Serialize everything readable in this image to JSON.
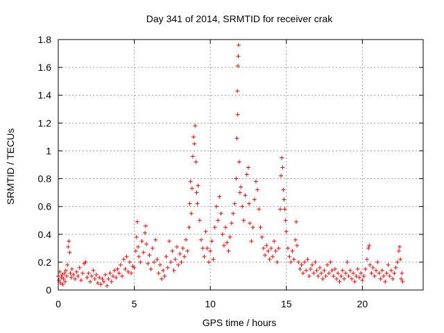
{
  "chart_data": {
    "type": "scatter",
    "title": "Day 341 of 2014, SRMTID for receiver crak",
    "xlabel": "GPS time / hours",
    "ylabel": "SRMTID / TECUs",
    "xlim": [
      0,
      24
    ],
    "ylim": [
      0,
      1.8
    ],
    "xticks": [
      0,
      5,
      10,
      15,
      20
    ],
    "xtick_labels": [
      "0",
      "5",
      "10",
      "15",
      "20"
    ],
    "yticks": [
      0,
      0.2,
      0.4,
      0.6,
      0.8,
      1,
      1.2,
      1.4,
      1.6,
      1.8
    ],
    "ytick_labels": [
      "0",
      "0.2",
      "0.4",
      "0.6",
      "0.8",
      "1",
      "1.2",
      "1.4",
      "1.6",
      "1.8"
    ],
    "grid": true,
    "marker": "+",
    "colors": {
      "series": "#ff0000",
      "grid": "#a0a0a0",
      "axes": "#000000"
    },
    "series": [
      {
        "name": "SRMTID",
        "points": [
          [
            0.0,
            0.1
          ],
          [
            0.05,
            0.07
          ],
          [
            0.1,
            0.13
          ],
          [
            0.15,
            0.05
          ],
          [
            0.2,
            0.09
          ],
          [
            0.25,
            0.11
          ],
          [
            0.3,
            0.04
          ],
          [
            0.35,
            0.08
          ],
          [
            0.4,
            0.12
          ],
          [
            0.45,
            0.06
          ],
          [
            0.5,
            0.14
          ],
          [
            0.55,
            0.1
          ],
          [
            0.6,
            0.18
          ],
          [
            0.65,
            0.31
          ],
          [
            0.7,
            0.35
          ],
          [
            0.75,
            0.27
          ],
          [
            0.8,
            0.12
          ],
          [
            0.85,
            0.09
          ],
          [
            0.9,
            0.15
          ],
          [
            1.0,
            0.11
          ],
          [
            1.1,
            0.08
          ],
          [
            1.2,
            0.13
          ],
          [
            1.3,
            0.1
          ],
          [
            1.4,
            0.16
          ],
          [
            1.5,
            0.07
          ],
          [
            1.6,
            0.12
          ],
          [
            1.7,
            0.19
          ],
          [
            1.8,
            0.2
          ],
          [
            1.9,
            0.09
          ],
          [
            2.0,
            0.12
          ],
          [
            2.1,
            0.06
          ],
          [
            2.2,
            0.1
          ],
          [
            2.3,
            0.14
          ],
          [
            2.4,
            0.08
          ],
          [
            2.5,
            0.11
          ],
          [
            2.6,
            0.05
          ],
          [
            2.7,
            0.09
          ],
          [
            2.8,
            0.04
          ],
          [
            2.9,
            0.08
          ],
          [
            3.0,
            0.06
          ],
          [
            3.1,
            0.11
          ],
          [
            3.2,
            0.03
          ],
          [
            3.3,
            0.08
          ],
          [
            3.4,
            0.12
          ],
          [
            3.5,
            0.06
          ],
          [
            3.6,
            0.1
          ],
          [
            3.7,
            0.14
          ],
          [
            3.8,
            0.09
          ],
          [
            3.9,
            0.15
          ],
          [
            4.0,
            0.12
          ],
          [
            4.1,
            0.18
          ],
          [
            4.2,
            0.1
          ],
          [
            4.3,
            0.22
          ],
          [
            4.4,
            0.15
          ],
          [
            4.5,
            0.24
          ],
          [
            4.6,
            0.13
          ],
          [
            4.7,
            0.2
          ],
          [
            4.8,
            0.12
          ],
          [
            4.9,
            0.17
          ],
          [
            5.0,
            0.16
          ],
          [
            5.1,
            0.28
          ],
          [
            5.15,
            0.38
          ],
          [
            5.2,
            0.49
          ],
          [
            5.25,
            0.31
          ],
          [
            5.3,
            0.24
          ],
          [
            5.4,
            0.2
          ],
          [
            5.5,
            0.35
          ],
          [
            5.6,
            0.27
          ],
          [
            5.7,
            0.41
          ],
          [
            5.75,
            0.46
          ],
          [
            5.8,
            0.33
          ],
          [
            5.9,
            0.19
          ],
          [
            6.0,
            0.25
          ],
          [
            6.1,
            0.15
          ],
          [
            6.2,
            0.3
          ],
          [
            6.3,
            0.2
          ],
          [
            6.4,
            0.36
          ],
          [
            6.5,
            0.22
          ],
          [
            6.6,
            0.12
          ],
          [
            6.7,
            0.18
          ],
          [
            6.8,
            0.08
          ],
          [
            6.9,
            0.14
          ],
          [
            7.0,
            0.1
          ],
          [
            7.1,
            0.24
          ],
          [
            7.2,
            0.16
          ],
          [
            7.3,
            0.35
          ],
          [
            7.4,
            0.2
          ],
          [
            7.5,
            0.28
          ],
          [
            7.6,
            0.14
          ],
          [
            7.7,
            0.22
          ],
          [
            7.8,
            0.31
          ],
          [
            7.9,
            0.18
          ],
          [
            8.0,
            0.26
          ],
          [
            8.1,
            0.2
          ],
          [
            8.2,
            0.3
          ],
          [
            8.3,
            0.24
          ],
          [
            8.4,
            0.36
          ],
          [
            8.5,
            0.28
          ],
          [
            8.6,
            0.45
          ],
          [
            8.65,
            0.62
          ],
          [
            8.7,
            0.78
          ],
          [
            8.75,
            0.55
          ],
          [
            8.8,
            0.73
          ],
          [
            8.85,
            0.96
          ],
          [
            8.9,
            1.1
          ],
          [
            8.95,
            1.05
          ],
          [
            9.0,
            1.18
          ],
          [
            9.05,
            0.92
          ],
          [
            9.1,
            0.7
          ],
          [
            9.15,
            0.62
          ],
          [
            9.2,
            0.75
          ],
          [
            9.3,
            0.5
          ],
          [
            9.4,
            0.36
          ],
          [
            9.5,
            0.3
          ],
          [
            9.6,
            0.24
          ],
          [
            9.7,
            0.42
          ],
          [
            9.8,
            0.3
          ],
          [
            9.9,
            0.2
          ],
          [
            10.0,
            0.28
          ],
          [
            10.1,
            0.35
          ],
          [
            10.2,
            0.22
          ],
          [
            10.3,
            0.45
          ],
          [
            10.4,
            0.6
          ],
          [
            10.5,
            0.5
          ],
          [
            10.6,
            0.67
          ],
          [
            10.7,
            0.55
          ],
          [
            10.8,
            0.4
          ],
          [
            10.9,
            0.32
          ],
          [
            11.0,
            0.45
          ],
          [
            11.1,
            0.34
          ],
          [
            11.2,
            0.28
          ],
          [
            11.3,
            0.38
          ],
          [
            11.4,
            0.48
          ],
          [
            11.5,
            0.55
          ],
          [
            11.6,
            0.62
          ],
          [
            11.7,
            0.8
          ],
          [
            11.75,
            1.09
          ],
          [
            11.78,
            1.43
          ],
          [
            11.8,
            1.26
          ],
          [
            11.82,
            1.61
          ],
          [
            11.84,
            1.68
          ],
          [
            11.86,
            1.76
          ],
          [
            11.9,
            0.92
          ],
          [
            11.95,
            0.7
          ],
          [
            12.0,
            0.74
          ],
          [
            12.1,
            0.6
          ],
          [
            12.2,
            0.5
          ],
          [
            12.3,
            0.68
          ],
          [
            12.4,
            0.83
          ],
          [
            12.5,
            0.88
          ],
          [
            12.55,
            0.62
          ],
          [
            12.6,
            0.48
          ],
          [
            12.7,
            0.35
          ],
          [
            12.8,
            0.45
          ],
          [
            12.9,
            0.65
          ],
          [
            13.0,
            0.78
          ],
          [
            13.1,
            0.72
          ],
          [
            13.2,
            0.58
          ],
          [
            13.3,
            0.45
          ],
          [
            13.4,
            0.38
          ],
          [
            13.5,
            0.3
          ],
          [
            13.6,
            0.25
          ],
          [
            13.7,
            0.32
          ],
          [
            13.8,
            0.28
          ],
          [
            13.9,
            0.22
          ],
          [
            14.0,
            0.3
          ],
          [
            14.1,
            0.24
          ],
          [
            14.2,
            0.35
          ],
          [
            14.3,
            0.28
          ],
          [
            14.4,
            0.2
          ],
          [
            14.5,
            0.3
          ],
          [
            14.6,
            0.58
          ],
          [
            14.65,
            0.82
          ],
          [
            14.7,
            0.95
          ],
          [
            14.75,
            0.88
          ],
          [
            14.8,
            0.72
          ],
          [
            14.85,
            0.65
          ],
          [
            14.9,
            0.58
          ],
          [
            14.95,
            0.5
          ],
          [
            15.0,
            0.42
          ],
          [
            15.1,
            0.3
          ],
          [
            15.2,
            0.24
          ],
          [
            15.3,
            0.2
          ],
          [
            15.4,
            0.28
          ],
          [
            15.5,
            0.22
          ],
          [
            15.6,
            0.36
          ],
          [
            15.65,
            0.49
          ],
          [
            15.7,
            0.32
          ],
          [
            15.8,
            0.2
          ],
          [
            15.9,
            0.15
          ],
          [
            16.0,
            0.18
          ],
          [
            16.1,
            0.12
          ],
          [
            16.2,
            0.2
          ],
          [
            16.3,
            0.14
          ],
          [
            16.4,
            0.22
          ],
          [
            16.5,
            0.1
          ],
          [
            16.6,
            0.15
          ],
          [
            16.7,
            0.18
          ],
          [
            16.8,
            0.12
          ],
          [
            16.9,
            0.2
          ],
          [
            17.0,
            0.14
          ],
          [
            17.1,
            0.1
          ],
          [
            17.2,
            0.16
          ],
          [
            17.3,
            0.12
          ],
          [
            17.4,
            0.08
          ],
          [
            17.5,
            0.14
          ],
          [
            17.6,
            0.1
          ],
          [
            17.7,
            0.18
          ],
          [
            17.8,
            0.12
          ],
          [
            17.9,
            0.2
          ],
          [
            18.0,
            0.14
          ],
          [
            18.1,
            0.1
          ],
          [
            18.2,
            0.15
          ],
          [
            18.3,
            0.08
          ],
          [
            18.4,
            0.12
          ],
          [
            18.5,
            0.06
          ],
          [
            18.6,
            0.1
          ],
          [
            18.7,
            0.14
          ],
          [
            18.8,
            0.08
          ],
          [
            18.9,
            0.12
          ],
          [
            19.0,
            0.2
          ],
          [
            19.1,
            0.1
          ],
          [
            19.2,
            0.14
          ],
          [
            19.3,
            0.08
          ],
          [
            19.4,
            0.12
          ],
          [
            19.5,
            0.06
          ],
          [
            19.6,
            0.1
          ],
          [
            19.7,
            0.15
          ],
          [
            19.8,
            0.09
          ],
          [
            19.9,
            0.12
          ],
          [
            20.0,
            0.07
          ],
          [
            20.1,
            0.1
          ],
          [
            20.2,
            0.15
          ],
          [
            20.3,
            0.22
          ],
          [
            20.4,
            0.3
          ],
          [
            20.45,
            0.32
          ],
          [
            20.5,
            0.18
          ],
          [
            20.6,
            0.12
          ],
          [
            20.7,
            0.16
          ],
          [
            20.8,
            0.1
          ],
          [
            20.9,
            0.14
          ],
          [
            21.0,
            0.2
          ],
          [
            21.1,
            0.12
          ],
          [
            21.2,
            0.08
          ],
          [
            21.3,
            0.14
          ],
          [
            21.4,
            0.1
          ],
          [
            21.5,
            0.06
          ],
          [
            21.6,
            0.12
          ],
          [
            21.7,
            0.18
          ],
          [
            21.8,
            0.1
          ],
          [
            21.9,
            0.14
          ],
          [
            22.0,
            0.08
          ],
          [
            22.1,
            0.12
          ],
          [
            22.2,
            0.16
          ],
          [
            22.3,
            0.2
          ],
          [
            22.4,
            0.28
          ],
          [
            22.45,
            0.31
          ],
          [
            22.5,
            0.22
          ],
          [
            22.55,
            0.08
          ],
          [
            22.6,
            0.12
          ],
          [
            22.65,
            0.06
          ]
        ]
      }
    ]
  }
}
